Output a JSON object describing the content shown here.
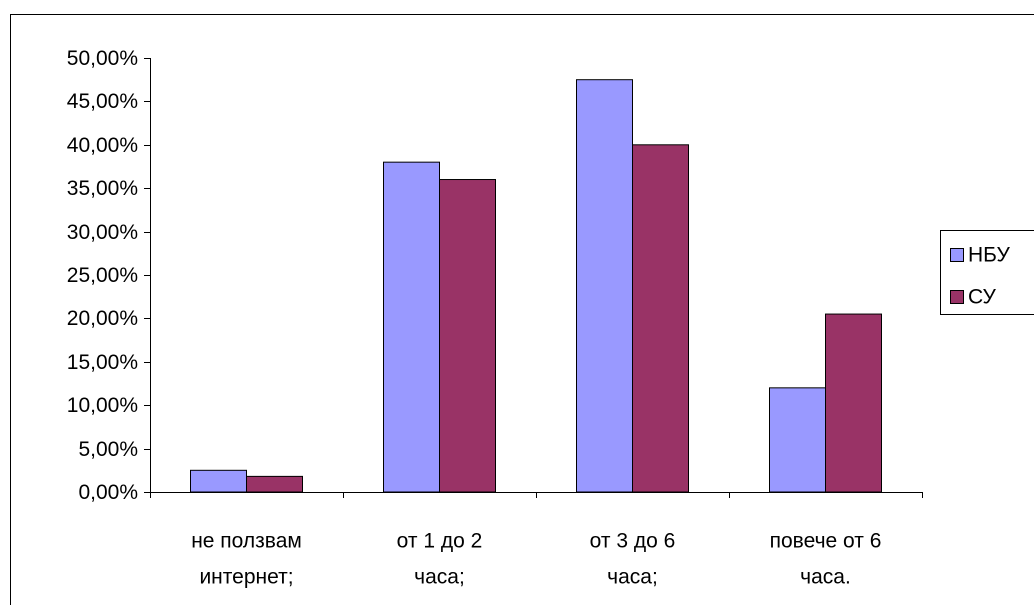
{
  "chart_data": {
    "type": "bar",
    "title": "",
    "xlabel": "",
    "ylabel": "",
    "categories": [
      [
        "не ползвам",
        "интернет;"
      ],
      [
        "от 1 до 2",
        "часа;"
      ],
      [
        "от 3 до 6",
        "часа;"
      ],
      [
        "повече от 6",
        "часа."
      ]
    ],
    "series": [
      {
        "name": "НБУ",
        "color": "#9999ff",
        "values": [
          0.025,
          0.38,
          0.475,
          0.12
        ]
      },
      {
        "name": "СУ",
        "color": "#993366",
        "values": [
          0.018,
          0.36,
          0.4,
          0.205
        ]
      }
    ],
    "ylim": [
      0,
      0.5
    ],
    "yticks": [
      0,
      0.05,
      0.1,
      0.15,
      0.2,
      0.25,
      0.3,
      0.35,
      0.4,
      0.45,
      0.5
    ],
    "ytick_labels": [
      "0,00%",
      "5,00%",
      "10,00%",
      "15,00%",
      "20,00%",
      "25,00%",
      "30,00%",
      "35,00%",
      "40,00%",
      "45,00%",
      "50,00%"
    ],
    "grid": false,
    "legend_position": "right"
  }
}
